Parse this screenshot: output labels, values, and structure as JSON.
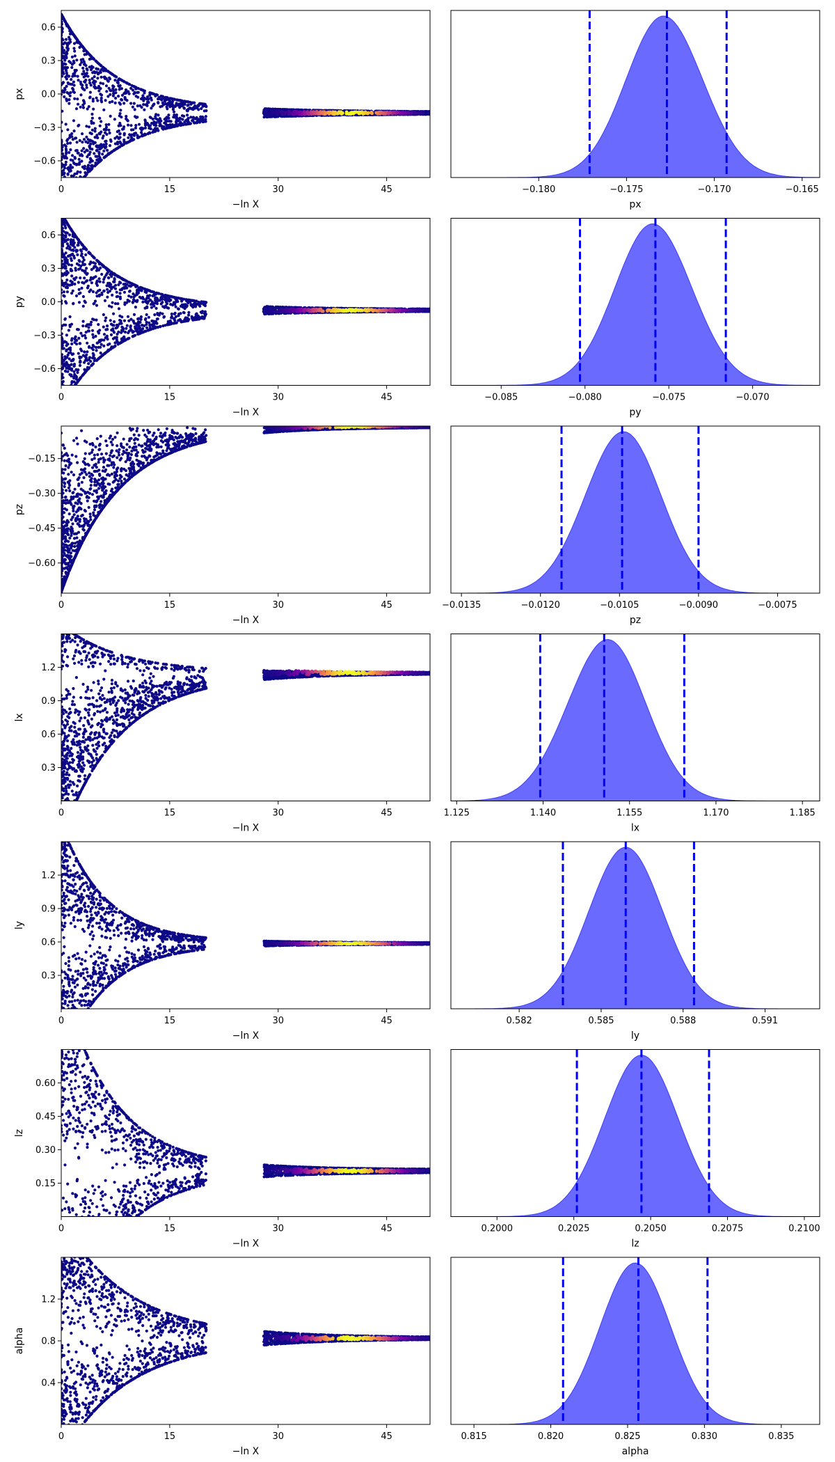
{
  "chart_data": [
    {
      "type": "scatter",
      "panel": "trace",
      "param": "px",
      "xlabel": "−ln X",
      "ylabel": "px",
      "xlim": [
        0,
        51
      ],
      "ylim": [
        -0.75,
        0.75
      ],
      "xticks": [
        0,
        15,
        30,
        45
      ],
      "xtick_labels": [
        "0",
        "15",
        "30",
        "45"
      ],
      "yticks": [
        -0.6,
        -0.3,
        0.0,
        0.3,
        0.6
      ],
      "ytick_labels": [
        "−0.6",
        "−0.3",
        "0.0",
        "0.3",
        "0.6"
      ],
      "trace": {
        "spread_start": 0.75,
        "center": -0.17,
        "decay": 7,
        "noise_floor": 0.05
      },
      "colormap": [
        "#0d0887",
        "#7e03a8",
        "#cc4778",
        "#f89540",
        "#f0f921"
      ],
      "peak_x": 40
    },
    {
      "type": "area",
      "panel": "posterior",
      "param": "px",
      "xlabel": "px",
      "xlim": [
        -0.185,
        -0.164
      ],
      "xticks": [
        -0.18,
        -0.175,
        -0.17,
        -0.165
      ],
      "xtick_labels": [
        "−0.180",
        "−0.175",
        "−0.170",
        "−0.165"
      ],
      "density": {
        "mean": -0.1727,
        "sd": 0.0022,
        "skew": -0.25
      },
      "quantile_lines": [
        -0.1771,
        -0.1727,
        -0.1693
      ],
      "fill_color": "#5a5aff",
      "line_color": "#0000ee"
    },
    {
      "type": "scatter",
      "panel": "trace",
      "param": "py",
      "xlabel": "−ln X",
      "ylabel": "py",
      "xlim": [
        0,
        51
      ],
      "ylim": [
        -0.75,
        0.75
      ],
      "xticks": [
        0,
        15,
        30,
        45
      ],
      "xtick_labels": [
        "0",
        "15",
        "30",
        "45"
      ],
      "yticks": [
        -0.6,
        -0.3,
        0.0,
        0.3,
        0.6
      ],
      "ytick_labels": [
        "−0.6",
        "−0.3",
        "0.0",
        "0.3",
        "0.6"
      ],
      "trace": {
        "spread_start": 0.75,
        "center": -0.076,
        "decay": 7,
        "noise_floor": 0.04
      },
      "colormap": [
        "#0d0887",
        "#7e03a8",
        "#cc4778",
        "#f89540",
        "#f0f921"
      ],
      "peak_x": 40
    },
    {
      "type": "area",
      "panel": "posterior",
      "param": "py",
      "xlabel": "py",
      "xlim": [
        -0.088,
        -0.066
      ],
      "xticks": [
        -0.085,
        -0.08,
        -0.075,
        -0.07
      ],
      "xtick_labels": [
        "−0.085",
        "−0.080",
        "−0.075",
        "−0.070"
      ],
      "density": {
        "mean": -0.0758,
        "sd": 0.0023,
        "skew": -0.2
      },
      "quantile_lines": [
        -0.0803,
        -0.0758,
        -0.0716
      ],
      "fill_color": "#5a5aff",
      "line_color": "#0000ee"
    },
    {
      "type": "scatter",
      "panel": "trace",
      "param": "pz",
      "xlabel": "−ln X",
      "ylabel": "pz",
      "xlim": [
        0,
        51
      ],
      "ylim": [
        -0.73,
        -0.01
      ],
      "xticks": [
        0,
        15,
        30,
        45
      ],
      "xtick_labels": [
        "0",
        "15",
        "30",
        "45"
      ],
      "yticks": [
        -0.6,
        -0.45,
        -0.3,
        -0.15
      ],
      "ytick_labels": [
        "−0.60",
        "−0.45",
        "−0.30",
        "−0.15"
      ],
      "trace": {
        "spread_start": 0.7,
        "center": -0.0105,
        "decay": 8,
        "noise_floor": 0.01,
        "one_sided": "below"
      },
      "colormap": [
        "#0d0887",
        "#7e03a8",
        "#cc4778",
        "#f89540",
        "#f0f921"
      ],
      "peak_x": 40
    },
    {
      "type": "area",
      "panel": "posterior",
      "param": "pz",
      "xlabel": "pz",
      "xlim": [
        -0.0137,
        -0.0067
      ],
      "xticks": [
        -0.0135,
        -0.012,
        -0.0105,
        -0.009,
        -0.0075
      ],
      "xtick_labels": [
        "−0.0135",
        "−0.0120",
        "−0.0105",
        "−0.0090",
        "−0.0075"
      ],
      "density": {
        "mean": -0.01045,
        "sd": 0.00072,
        "skew": 0.1
      },
      "quantile_lines": [
        -0.0116,
        -0.01045,
        -0.009
      ],
      "fill_color": "#5a5aff",
      "line_color": "#0000ee"
    },
    {
      "type": "scatter",
      "panel": "trace",
      "param": "lx",
      "xlabel": "−ln X",
      "ylabel": "lx",
      "xlim": [
        0,
        51
      ],
      "ylim": [
        0.0,
        1.5
      ],
      "xticks": [
        0,
        15,
        30,
        45
      ],
      "xtick_labels": [
        "0",
        "15",
        "30",
        "45"
      ],
      "yticks": [
        0.3,
        0.6,
        0.9,
        1.2
      ],
      "ytick_labels": [
        "0.3",
        "0.6",
        "0.9",
        "1.2"
      ],
      "trace": {
        "spread_start": 1.2,
        "center": 1.15,
        "decay": 8,
        "noise_floor": 0.03,
        "one_sided": "below_with_top"
      },
      "colormap": [
        "#0d0887",
        "#7e03a8",
        "#cc4778",
        "#f89540",
        "#f0f921"
      ],
      "peak_x": 40
    },
    {
      "type": "area",
      "panel": "posterior",
      "param": "lx",
      "xlabel": "lx",
      "xlim": [
        1.124,
        1.188
      ],
      "xticks": [
        1.125,
        1.14,
        1.155,
        1.17,
        1.185
      ],
      "xtick_labels": [
        "1.125",
        "1.140",
        "1.155",
        "1.170",
        "1.185"
      ],
      "density": {
        "mean": 1.1506,
        "sd": 0.0068,
        "skew": 0.25
      },
      "quantile_lines": [
        1.1395,
        1.1506,
        1.1645
      ],
      "fill_color": "#5a5aff",
      "line_color": "#0000ee"
    },
    {
      "type": "scatter",
      "panel": "trace",
      "param": "ly",
      "xlabel": "−ln X",
      "ylabel": "ly",
      "xlim": [
        0,
        51
      ],
      "ylim": [
        0.0,
        1.5
      ],
      "xticks": [
        0,
        15,
        30,
        45
      ],
      "xtick_labels": [
        "0",
        "15",
        "30",
        "45"
      ],
      "yticks": [
        0.3,
        0.6,
        0.9,
        1.2
      ],
      "ytick_labels": [
        "0.3",
        "0.6",
        "0.9",
        "1.2"
      ],
      "trace": {
        "spread_start": 0.95,
        "center": 0.586,
        "decay": 6,
        "noise_floor": 0.02
      },
      "colormap": [
        "#0d0887",
        "#7e03a8",
        "#cc4778",
        "#f89540",
        "#f0f921"
      ],
      "peak_x": 40
    },
    {
      "type": "area",
      "panel": "posterior",
      "param": "ly",
      "xlabel": "ly",
      "xlim": [
        0.5795,
        0.593
      ],
      "xticks": [
        0.582,
        0.585,
        0.588,
        0.591
      ],
      "xtick_labels": [
        "0.582",
        "0.585",
        "0.588",
        "0.591"
      ],
      "density": {
        "mean": 0.5859,
        "sd": 0.00135,
        "skew": 0.0
      },
      "quantile_lines": [
        0.5836,
        0.5859,
        0.5884
      ],
      "fill_color": "#5a5aff",
      "line_color": "#0000ee"
    },
    {
      "type": "scatter",
      "panel": "trace",
      "param": "lz",
      "xlabel": "−ln X",
      "ylabel": "lz",
      "xlim": [
        0,
        51
      ],
      "ylim": [
        0.0,
        0.75
      ],
      "xticks": [
        0,
        15,
        30,
        45
      ],
      "xtick_labels": [
        "0",
        "15",
        "30",
        "45"
      ],
      "yticks": [
        0.15,
        0.3,
        0.45,
        0.6
      ],
      "ytick_labels": [
        "0.15",
        "0.30",
        "0.45",
        "0.60"
      ],
      "trace": {
        "spread_start": 0.75,
        "center": 0.205,
        "decay": 7,
        "noise_floor": 0.02
      },
      "colormap": [
        "#0d0887",
        "#7e03a8",
        "#cc4778",
        "#f89540",
        "#f0f921"
      ],
      "peak_x": 40
    },
    {
      "type": "area",
      "panel": "posterior",
      "param": "lz",
      "xlabel": "lz",
      "xlim": [
        0.1985,
        0.2105
      ],
      "xticks": [
        0.2,
        0.2025,
        0.205,
        0.2075,
        0.21
      ],
      "xtick_labels": [
        "0.2000",
        "0.2025",
        "0.2050",
        "0.2075",
        "0.2100"
      ],
      "density": {
        "mean": 0.2047,
        "sd": 0.0012,
        "skew": 0.0
      },
      "quantile_lines": [
        0.2026,
        0.2047,
        0.2069
      ],
      "fill_color": "#5a5aff",
      "line_color": "#0000ee"
    },
    {
      "type": "scatter",
      "panel": "trace",
      "param": "alpha",
      "xlabel": "−ln X",
      "ylabel": "alpha",
      "xlim": [
        0,
        51
      ],
      "ylim": [
        0.0,
        1.6
      ],
      "xticks": [
        0,
        15,
        30,
        45
      ],
      "xtick_labels": [
        "0",
        "15",
        "30",
        "45"
      ],
      "yticks": [
        0.4,
        0.8,
        1.2
      ],
      "ytick_labels": [
        "0.4",
        "0.8",
        "1.2"
      ],
      "trace": {
        "spread_start": 1.0,
        "center": 0.825,
        "decay": 9,
        "noise_floor": 0.03
      },
      "colormap": [
        "#0d0887",
        "#7e03a8",
        "#cc4778",
        "#f89540",
        "#f0f921"
      ],
      "peak_x": 40
    },
    {
      "type": "area",
      "panel": "posterior",
      "param": "alpha",
      "xlabel": "alpha",
      "xlim": [
        0.8135,
        0.8375
      ],
      "xticks": [
        0.815,
        0.82,
        0.825,
        0.83,
        0.835
      ],
      "xtick_labels": [
        "0.815",
        "0.820",
        "0.825",
        "0.830",
        "0.835"
      ],
      "density": {
        "mean": 0.8255,
        "sd": 0.0023,
        "skew": 0.0
      },
      "quantile_lines": [
        0.8208,
        0.8257,
        0.8302
      ],
      "fill_color": "#5a5aff",
      "line_color": "#0000ee"
    }
  ]
}
